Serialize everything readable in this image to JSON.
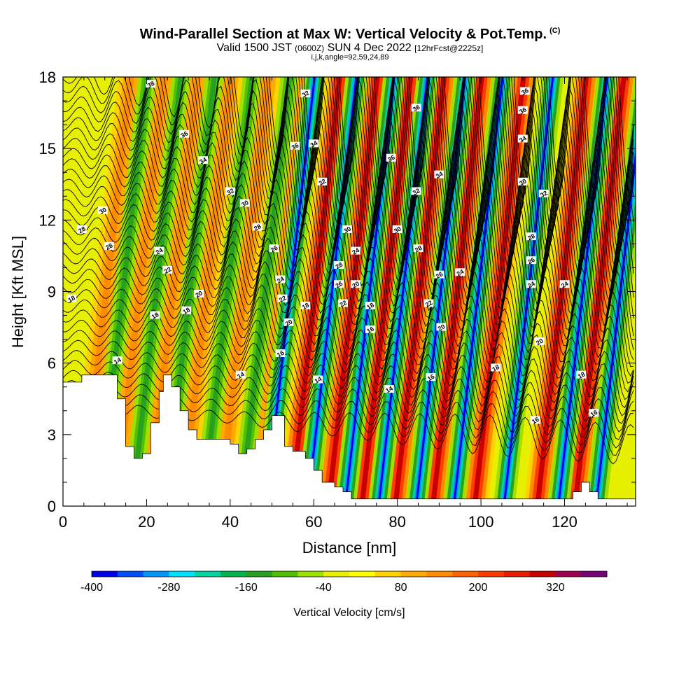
{
  "title": {
    "main": "Wind-Parallel Section at Max W: Vertical Velocity & Pot.Temp.",
    "tag": "(C)"
  },
  "subtitle": {
    "valid": "Valid 1500 JST",
    "zulu": "(0600Z)",
    "date": "SUN 4 Dec 2022",
    "fcst": "[12hrFcst@2225z]"
  },
  "subtitle2": "i,j,k,angle=92,59,24,89",
  "chart_data": {
    "type": "heatmap",
    "xlabel": "Distance [nm]",
    "ylabel": "Height [Kft MSL]",
    "xlim": [
      0,
      137
    ],
    "ylim": [
      0,
      18
    ],
    "x_ticks": [
      0,
      20,
      40,
      60,
      80,
      100,
      120
    ],
    "y_ticks": [
      0,
      3,
      6,
      9,
      12,
      15,
      18
    ],
    "colorbar": {
      "label": "Vertical Velocity [cm/s]",
      "range": [
        -400,
        400
      ],
      "tick_labels": [
        "-400",
        "-280",
        "-160",
        "-40",
        "80",
        "200",
        "320"
      ],
      "colors": [
        "#0000e6",
        "#0050ff",
        "#0096ff",
        "#00e0ff",
        "#00d2a0",
        "#00b450",
        "#28a020",
        "#50c000",
        "#a0e000",
        "#e6f000",
        "#ffff00",
        "#ffd200",
        "#ffaa00",
        "#ff8c00",
        "#ff6400",
        "#ff3c00",
        "#e61e00",
        "#c80000",
        "#a00050",
        "#780078"
      ]
    },
    "updraft_bands_nm": [
      9,
      17,
      25,
      33,
      42,
      51,
      59,
      68,
      76,
      84,
      93,
      103,
      118,
      127
    ],
    "downdraft_bands_nm": [
      13,
      21,
      29,
      38,
      47,
      53,
      63,
      72,
      80,
      89,
      98,
      110,
      123,
      132
    ],
    "terrain": {
      "x": [
        0,
        4.5,
        10,
        13,
        15,
        17,
        19,
        21,
        23,
        24,
        26,
        28,
        30,
        32,
        36,
        40,
        42,
        44,
        46,
        48,
        50,
        53,
        55,
        58,
        60,
        62,
        65,
        67,
        69,
        71,
        80,
        100,
        118,
        122,
        124,
        126,
        128,
        137
      ],
      "y": [
        5.2,
        5.5,
        5.5,
        4.5,
        2.5,
        2.0,
        2.2,
        3.5,
        4.8,
        5.5,
        5.0,
        4.0,
        3.2,
        2.8,
        2.8,
        2.6,
        2.2,
        2.4,
        2.8,
        3.2,
        3.8,
        2.5,
        2.3,
        2.0,
        1.5,
        1.0,
        0.8,
        0.6,
        0.3,
        0.3,
        0.3,
        0.3,
        0.3,
        0.6,
        1.0,
        0.6,
        0.3,
        0.3
      ]
    },
    "contour_labels": [
      {
        "text": "38",
        "x": 21,
        "y": 17.7
      },
      {
        "text": "36",
        "x": 29,
        "y": 15.6
      },
      {
        "text": "34",
        "x": 33.5,
        "y": 14.5
      },
      {
        "text": "32",
        "x": 40,
        "y": 13.2
      },
      {
        "text": "30",
        "x": 43.5,
        "y": 12.7
      },
      {
        "text": "30",
        "x": 9.5,
        "y": 12.4
      },
      {
        "text": "28",
        "x": 4.5,
        "y": 11.6
      },
      {
        "text": "28",
        "x": 11,
        "y": 10.9
      },
      {
        "text": "28",
        "x": 46.5,
        "y": 11.7
      },
      {
        "text": "26",
        "x": 50.5,
        "y": 10.8
      },
      {
        "text": "24",
        "x": 23,
        "y": 10.7
      },
      {
        "text": "22",
        "x": 25,
        "y": 9.9
      },
      {
        "text": "24",
        "x": 52,
        "y": 9.5
      },
      {
        "text": "22",
        "x": 52.5,
        "y": 8.7
      },
      {
        "text": "20",
        "x": 32.5,
        "y": 8.9
      },
      {
        "text": "18",
        "x": 2,
        "y": 8.7
      },
      {
        "text": "18",
        "x": 29.5,
        "y": 8.2
      },
      {
        "text": "18",
        "x": 22,
        "y": 8.0
      },
      {
        "text": "18",
        "x": 58,
        "y": 8.4
      },
      {
        "text": "20",
        "x": 54,
        "y": 7.7
      },
      {
        "text": "16",
        "x": 52,
        "y": 6.4
      },
      {
        "text": "14",
        "x": 13,
        "y": 6.1
      },
      {
        "text": "14",
        "x": 42.5,
        "y": 5.5
      },
      {
        "text": "14",
        "x": 61,
        "y": 5.3
      },
      {
        "text": "32",
        "x": 58,
        "y": 17.3
      },
      {
        "text": "34",
        "x": 60,
        "y": 15.2
      },
      {
        "text": "36",
        "x": 55.5,
        "y": 15.1
      },
      {
        "text": "32",
        "x": 62,
        "y": 13.6
      },
      {
        "text": "30",
        "x": 68,
        "y": 11.6
      },
      {
        "text": "28",
        "x": 66,
        "y": 10.1
      },
      {
        "text": "24",
        "x": 70,
        "y": 10.7
      },
      {
        "text": "26",
        "x": 66,
        "y": 9.3
      },
      {
        "text": "20",
        "x": 70,
        "y": 9.3
      },
      {
        "text": "22",
        "x": 67,
        "y": 8.5
      },
      {
        "text": "18",
        "x": 73.5,
        "y": 8.4
      },
      {
        "text": "16",
        "x": 73.5,
        "y": 7.4
      },
      {
        "text": "14",
        "x": 78,
        "y": 4.9
      },
      {
        "text": "36",
        "x": 84.5,
        "y": 16.7
      },
      {
        "text": "36",
        "x": 78.5,
        "y": 14.6
      },
      {
        "text": "34",
        "x": 90,
        "y": 13.9
      },
      {
        "text": "32",
        "x": 84.5,
        "y": 13.2
      },
      {
        "text": "30",
        "x": 80,
        "y": 11.6
      },
      {
        "text": "28",
        "x": 85,
        "y": 10.8
      },
      {
        "text": "26",
        "x": 90,
        "y": 9.7
      },
      {
        "text": "24",
        "x": 95,
        "y": 9.8
      },
      {
        "text": "22",
        "x": 87.5,
        "y": 8.5
      },
      {
        "text": "20",
        "x": 90.5,
        "y": 7.5
      },
      {
        "text": "16",
        "x": 88,
        "y": 5.4
      },
      {
        "text": "18",
        "x": 103.5,
        "y": 5.8
      },
      {
        "text": "36",
        "x": 110.5,
        "y": 17.4
      },
      {
        "text": "36",
        "x": 110,
        "y": 16.6
      },
      {
        "text": "34",
        "x": 110,
        "y": 15.4
      },
      {
        "text": "30",
        "x": 110,
        "y": 13.6
      },
      {
        "text": "32",
        "x": 115,
        "y": 13.1
      },
      {
        "text": "28",
        "x": 112,
        "y": 11.3
      },
      {
        "text": "26",
        "x": 112,
        "y": 10.3
      },
      {
        "text": "24",
        "x": 112,
        "y": 9.3
      },
      {
        "text": "24",
        "x": 120,
        "y": 9.3
      },
      {
        "text": "20",
        "x": 114,
        "y": 6.9
      },
      {
        "text": "18",
        "x": 124,
        "y": 5.5
      },
      {
        "text": "16",
        "x": 113,
        "y": 3.6
      },
      {
        "text": "16",
        "x": 127,
        "y": 3.9
      }
    ]
  }
}
